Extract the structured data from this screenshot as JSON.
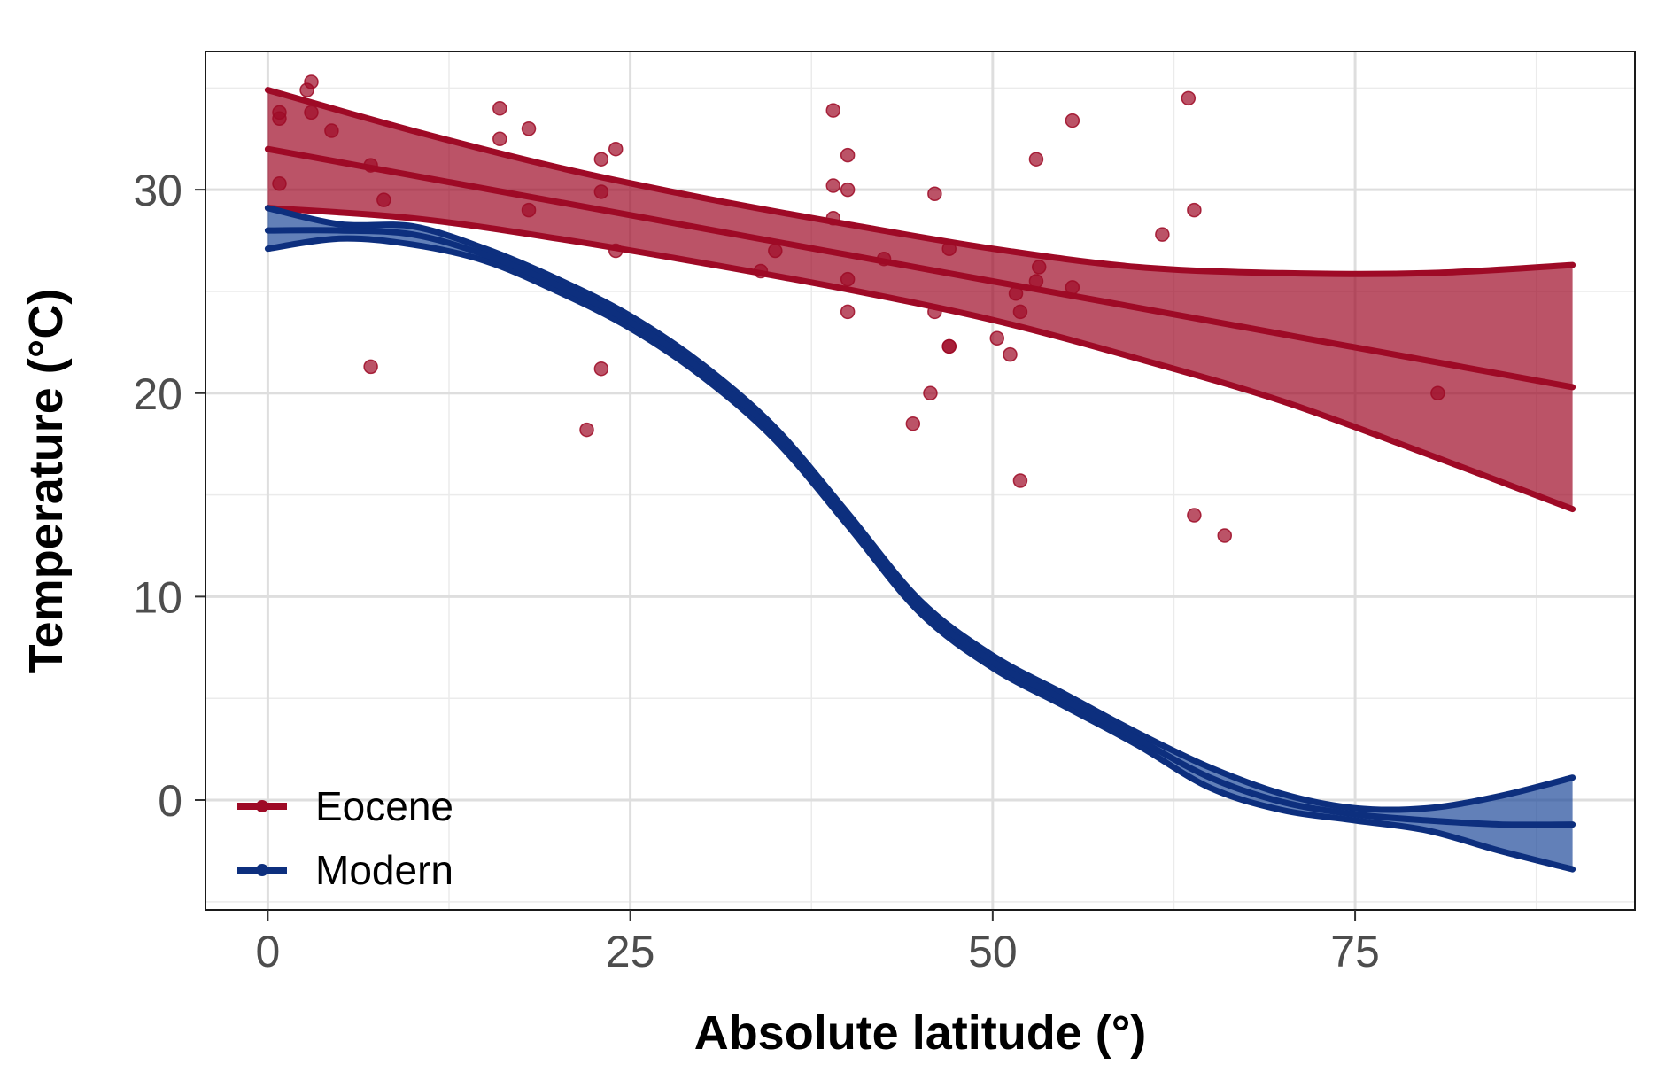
{
  "chart_data": {
    "type": "scatter",
    "title": "",
    "xlabel": "Absolute latitude (°)",
    "ylabel": "Temperature (°C)",
    "xlim": [
      -4.3,
      94.3
    ],
    "ylim": [
      -5.4,
      36.8
    ],
    "x_ticks": [
      0,
      25,
      50,
      75
    ],
    "y_ticks": [
      0,
      10,
      20,
      30
    ],
    "x_tick_labels": [
      "0",
      "25",
      "50",
      "75"
    ],
    "y_tick_labels": [
      "0",
      "10",
      "20",
      "30"
    ],
    "grid": true,
    "legend_position": "bottom-left",
    "series": [
      {
        "name": "Eocene",
        "color": "#9e0a26",
        "points": [
          [
            0.8,
            33.8
          ],
          [
            0.8,
            33.5
          ],
          [
            0.8,
            30.3
          ],
          [
            2.7,
            34.9
          ],
          [
            3.0,
            35.3
          ],
          [
            3.0,
            33.8
          ],
          [
            4.4,
            32.9
          ],
          [
            7.1,
            31.2
          ],
          [
            7.1,
            21.3
          ],
          [
            8.0,
            29.5
          ],
          [
            16.0,
            34.0
          ],
          [
            16.0,
            32.5
          ],
          [
            18.0,
            33.0
          ],
          [
            18.0,
            29.0
          ],
          [
            22.0,
            18.2
          ],
          [
            23.0,
            31.5
          ],
          [
            23.0,
            29.9
          ],
          [
            23.0,
            21.2
          ],
          [
            24.0,
            32.0
          ],
          [
            24.0,
            27.0
          ],
          [
            34.0,
            26.0
          ],
          [
            35.0,
            27.0
          ],
          [
            39.0,
            33.9
          ],
          [
            39.0,
            30.2
          ],
          [
            39.0,
            28.6
          ],
          [
            40.0,
            31.7
          ],
          [
            40.0,
            30.0
          ],
          [
            40.0,
            25.6
          ],
          [
            40.0,
            24.0
          ],
          [
            42.5,
            26.6
          ],
          [
            44.5,
            18.5
          ],
          [
            45.7,
            20.0
          ],
          [
            46.0,
            29.8
          ],
          [
            46.0,
            24.0
          ],
          [
            47.0,
            27.1
          ],
          [
            47.0,
            22.3
          ],
          [
            47.0,
            22.3
          ],
          [
            50.3,
            22.7
          ],
          [
            51.2,
            21.9
          ],
          [
            51.6,
            24.9
          ],
          [
            51.9,
            24.0
          ],
          [
            51.9,
            15.7
          ],
          [
            53.0,
            31.5
          ],
          [
            53.0,
            25.5
          ],
          [
            53.2,
            26.2
          ],
          [
            55.5,
            33.4
          ],
          [
            55.5,
            25.2
          ],
          [
            61.7,
            27.8
          ],
          [
            63.5,
            34.5
          ],
          [
            63.9,
            29.0
          ],
          [
            63.9,
            14.0
          ],
          [
            66.0,
            13.0
          ],
          [
            80.7,
            20.0
          ]
        ],
        "fit": {
          "x": [
            0,
            10,
            20,
            30,
            40,
            50,
            60,
            70,
            80,
            90
          ],
          "y": [
            32.0,
            30.7,
            29.4,
            28.1,
            26.8,
            25.5,
            24.2,
            22.9,
            21.6,
            20.3
          ],
          "lower": [
            29.1,
            28.6,
            27.6,
            26.4,
            25.1,
            23.6,
            21.7,
            19.6,
            17.0,
            14.3
          ],
          "upper": [
            34.9,
            32.9,
            31.1,
            29.6,
            28.3,
            27.1,
            26.2,
            25.9,
            25.9,
            26.3
          ]
        }
      },
      {
        "name": "Modern",
        "color": "#0d2f7e",
        "fit": {
          "x": [
            0,
            5,
            10,
            15,
            20,
            25,
            30,
            35,
            40,
            45,
            50,
            55,
            60,
            65,
            70,
            75,
            80,
            85,
            90
          ],
          "y": [
            28.0,
            28.0,
            27.8,
            26.8,
            25.3,
            23.5,
            21.1,
            18.0,
            13.8,
            9.5,
            6.8,
            4.9,
            3.0,
            1.1,
            -0.1,
            -0.7,
            -1.0,
            -1.2,
            -1.2
          ],
          "lower": [
            27.1,
            27.6,
            27.3,
            26.5,
            25.0,
            23.2,
            20.8,
            17.7,
            13.5,
            9.2,
            6.5,
            4.6,
            2.7,
            0.6,
            -0.5,
            -1.0,
            -1.5,
            -2.5,
            -3.4
          ],
          "upper": [
            29.1,
            28.3,
            28.2,
            27.1,
            25.6,
            23.8,
            21.4,
            18.3,
            14.1,
            9.8,
            7.1,
            5.2,
            3.3,
            1.6,
            0.3,
            -0.4,
            -0.4,
            0.2,
            1.1
          ]
        }
      }
    ]
  }
}
